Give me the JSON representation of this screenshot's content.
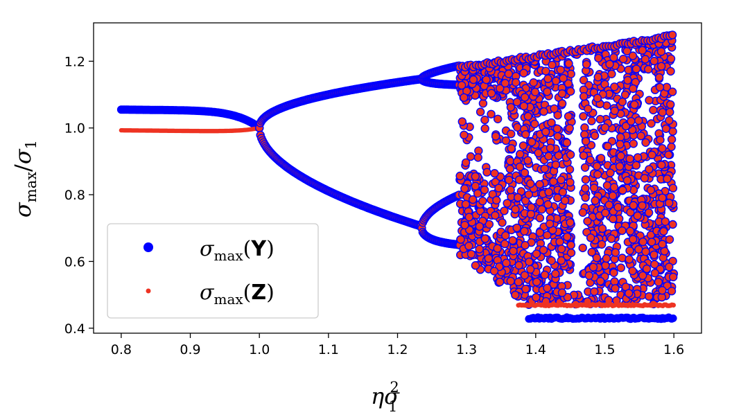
{
  "chart_data": {
    "type": "scatter",
    "title": "",
    "xlabel": "ησ",
    "xlabel_sup": "2",
    "xlabel_sub": "1",
    "ylabel_num": "σ",
    "ylabel_num_sub": "max",
    "ylabel_den": "σ",
    "ylabel_den_sub": "1",
    "xlim": [
      0.76,
      1.64
    ],
    "ylim": [
      0.385,
      1.315
    ],
    "xticks": [
      0.8,
      0.9,
      1.0,
      1.1,
      1.2,
      1.3,
      1.4,
      1.5,
      1.6
    ],
    "xtick_labels": [
      "0.8",
      "0.9",
      "1.0",
      "1.1",
      "1.2",
      "1.3",
      "1.4",
      "1.5",
      "1.6"
    ],
    "yticks": [
      0.4,
      0.6,
      0.8,
      1.0,
      1.2
    ],
    "ytick_labels": [
      "0.4",
      "0.6",
      "0.8",
      "1.0",
      "1.2"
    ],
    "grid": false,
    "legend_position": "lower-left",
    "series": [
      {
        "name_math": "σ",
        "name_sub": "max",
        "name_arg": "Y",
        "color": "#0000ff",
        "marker": "large-dot",
        "stable": [
          [
            0.8,
            1.055
          ],
          [
            0.85,
            1.053
          ],
          [
            0.9,
            1.05
          ],
          [
            0.95,
            1.04
          ],
          [
            0.98,
            1.02
          ],
          [
            1.0,
            1.0
          ]
        ],
        "bifurcation_start": 1.0,
        "period_doubling": 1.235,
        "chaos_start": 1.29,
        "chaos_range": [
          0.47,
          1.28
        ],
        "floor_segment": {
          "x": [
            1.39,
            1.6
          ],
          "y": 0.43
        }
      },
      {
        "name_math": "σ",
        "name_sub": "max",
        "name_arg": "Z",
        "color": "#ee3322",
        "marker": "small-dot",
        "stable": [
          [
            0.8,
            0.993
          ],
          [
            0.9,
            0.992
          ],
          [
            0.98,
            0.99
          ],
          [
            1.0,
            1.0
          ]
        ],
        "bifurcation_start": 1.0,
        "period_doubling": 1.235,
        "chaos_start": 1.29,
        "chaos_range": [
          0.47,
          1.28
        ],
        "floor_segment": {
          "x": [
            1.38,
            1.6
          ],
          "y": 0.47
        }
      }
    ]
  }
}
